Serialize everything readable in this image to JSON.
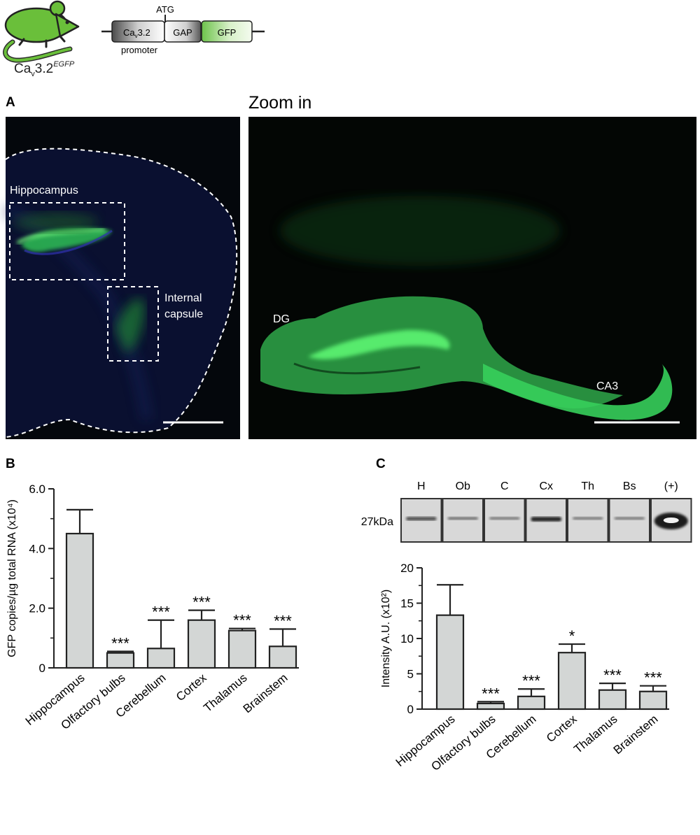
{
  "header": {
    "mouse_label_main": "Ca",
    "mouse_label_sub": "v",
    "mouse_label_tail": "3.2",
    "mouse_label_sup": "EGFP",
    "atg": "ATG",
    "box_promoter_main": "Ca",
    "box_promoter_sub": "v",
    "box_promoter_tail": "3.2",
    "box_gap": "GAP",
    "box_gfp": "GFP",
    "promoter": "promoter",
    "mouse_color": "#6abf3a"
  },
  "panel_a": {
    "letter": "A",
    "zoom_title": "Zoom in",
    "hippocampus": "Hippocampus",
    "internal_capsule_1": "Internal",
    "internal_capsule_2": "capsule",
    "dg": "DG",
    "ca3": "CA3"
  },
  "panel_b": {
    "letter": "B"
  },
  "panel_c": {
    "letter": "C",
    "blot_kda": "27kDa",
    "blot_lanes": [
      "H",
      "Ob",
      "C",
      "Cx",
      "Th",
      "Bs",
      "(+)"
    ],
    "blot_band_intensity": [
      0.6,
      0.35,
      0.3,
      0.9,
      0.3,
      0.3,
      1.0
    ]
  },
  "chart_data": [
    {
      "type": "bar",
      "ylabel": "GFP copies/µg total RNA (x10⁴)",
      "ylim": [
        0,
        6
      ],
      "yticks": [
        0,
        2,
        4,
        6
      ],
      "ytick_labels": [
        "0",
        "2.0",
        "4.0",
        "6.0"
      ],
      "categories": [
        "Hippocampus",
        "Olfactory bulbs",
        "Cerebellum",
        "Cortex",
        "Thalamus",
        "Brainstem"
      ],
      "values": [
        4.5,
        0.5,
        0.65,
        1.6,
        1.25,
        0.72
      ],
      "errors": [
        0.8,
        0.05,
        0.95,
        0.33,
        0.07,
        0.58
      ],
      "significance": [
        "",
        "***",
        "***",
        "***",
        "***",
        "***"
      ],
      "bar_color": "#d3d6d5"
    },
    {
      "type": "bar",
      "ylabel": "Intensity A.U.  (x10²)",
      "ylim": [
        0,
        20
      ],
      "yticks": [
        0,
        5,
        10,
        15,
        20
      ],
      "ytick_labels": [
        "0",
        "5",
        "10",
        "15",
        "20"
      ],
      "categories": [
        "Hippocampus",
        "Olfactory bulbs",
        "Cerebellum",
        "Cortex",
        "Thalamus",
        "Brainstem"
      ],
      "values": [
        13.3,
        0.8,
        1.8,
        8.0,
        2.7,
        2.5
      ],
      "errors": [
        4.3,
        0.25,
        1.05,
        1.2,
        0.95,
        0.8
      ],
      "significance": [
        "",
        "***",
        "***",
        "*",
        "***",
        "***"
      ],
      "bar_color": "#d3d6d5"
    }
  ]
}
